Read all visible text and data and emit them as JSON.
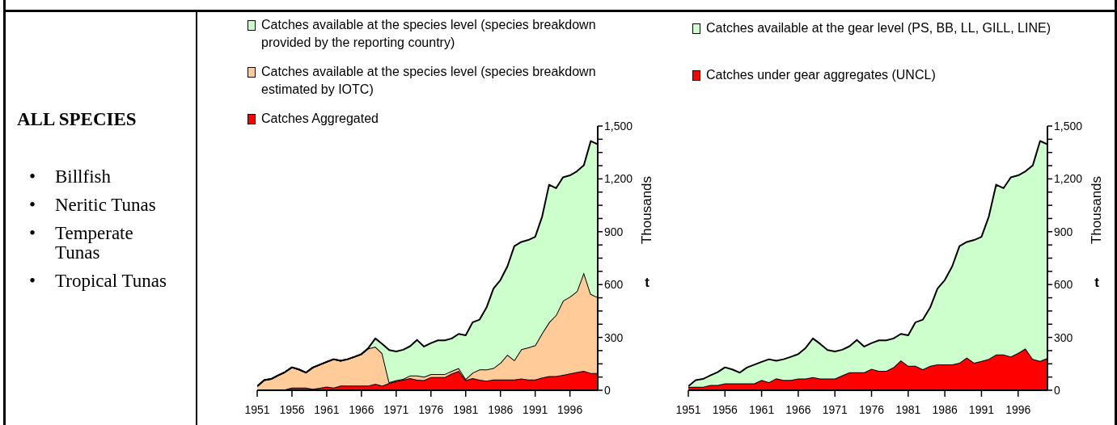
{
  "chart_data": [
    {
      "type": "other",
      "title": "ALL SPECIES",
      "annotations": [
        "• Billfish",
        "• Neritic Tunas",
        "• Temperate Tunas",
        "• Tropical Tunas"
      ]
    },
    {
      "type": "area",
      "stacked": true,
      "legend": "top",
      "ylabel": "Thousands",
      "annotations": [
        "t"
      ],
      "x": [
        1951,
        1952,
        1953,
        1954,
        1955,
        1956,
        1957,
        1958,
        1959,
        1960,
        1961,
        1962,
        1963,
        1964,
        1965,
        1966,
        1967,
        1968,
        1969,
        1970,
        1971,
        1972,
        1973,
        1974,
        1975,
        1976,
        1977,
        1978,
        1979,
        1980,
        1981,
        1982,
        1983,
        1984,
        1985,
        1986,
        1987,
        1988,
        1989,
        1990,
        1991,
        1992,
        1993,
        1994,
        1995,
        1996,
        1997,
        1998,
        1999,
        2000
      ],
      "xlim": [
        1951,
        2000
      ],
      "xticks": [
        1951,
        1956,
        1961,
        1966,
        1971,
        1976,
        1981,
        1986,
        1991,
        1996
      ],
      "ylim": [
        0,
        1500
      ],
      "yticks": [
        0,
        {
          "value": 75,
          "label": null
        },
        {
          "value": 150,
          "label": null
        },
        {
          "value": 225,
          "label": null
        },
        300,
        {
          "value": 375,
          "label": null
        },
        {
          "value": 450,
          "label": null
        },
        {
          "value": 525,
          "label": null
        },
        600,
        {
          "value": 675,
          "label": null
        },
        {
          "value": 750,
          "label": null
        },
        {
          "value": 825,
          "label": null
        },
        900,
        {
          "value": 975,
          "label": null
        },
        {
          "value": 1050,
          "label": null
        },
        {
          "value": 1125,
          "label": null
        },
        {
          "value": 1200,
          "label": "1,200"
        },
        {
          "value": 1275,
          "label": null
        },
        {
          "value": 1350,
          "label": null
        },
        {
          "value": 1425,
          "label": null
        },
        {
          "value": 1500,
          "label": "1,500"
        }
      ],
      "series": [
        {
          "name": "Catches Aggregated",
          "color": "#ff0000",
          "values": [
            5,
            5,
            5,
            5,
            5,
            15,
            15,
            15,
            8,
            14,
            21,
            15,
            26,
            26,
            26,
            26,
            26,
            37,
            26,
            41,
            52,
            60,
            69,
            60,
            57,
            75,
            75,
            75,
            95,
            110,
            57,
            69,
            60,
            54,
            61,
            61,
            61,
            61,
            67,
            61,
            61,
            72,
            80,
            80,
            87,
            95,
            103,
            110,
            98,
            98
          ]
        },
        {
          "name": "Catches available at the species level (species breakdown estimated by IOTC)",
          "color": "#ffcc99",
          "values": [
            18,
            52,
            59,
            79,
            98,
            115,
            103,
            85,
            121,
            131,
            140,
            161,
            141,
            150,
            164,
            179,
            211,
            211,
            184,
            5,
            5,
            4,
            15,
            24,
            20,
            17,
            17,
            17,
            15,
            16,
            7,
            31,
            58,
            64,
            65,
            95,
            141,
            110,
            166,
            182,
            195,
            253,
            306,
            347,
            421,
            436,
            459,
            559,
            449,
            430
          ]
        },
        {
          "name": "Catches available at the species level (species breakdown provided by the reporting country)",
          "color": "#ccffcc",
          "values": [
            0,
            0,
            0,
            0,
            0,
            0,
            0,
            0,
            0,
            0,
            0,
            0,
            0,
            0,
            0,
            0,
            3,
            46,
            53,
            182,
            163,
            166,
            166,
            202,
            171,
            176,
            191,
            191,
            184,
            194,
            248,
            286,
            283,
            352,
            451,
            470,
            501,
            647,
            609,
            610,
            615,
            661,
            781,
            720,
            701,
            689,
            681,
            608,
            868,
            868
          ]
        }
      ]
    },
    {
      "type": "area",
      "stacked": true,
      "legend": "top",
      "ylabel": "Thousands",
      "annotations": [
        "t"
      ],
      "x": [
        1951,
        1952,
        1953,
        1954,
        1955,
        1956,
        1957,
        1958,
        1959,
        1960,
        1961,
        1962,
        1963,
        1964,
        1965,
        1966,
        1967,
        1968,
        1969,
        1970,
        1971,
        1972,
        1973,
        1974,
        1975,
        1976,
        1977,
        1978,
        1979,
        1980,
        1981,
        1982,
        1983,
        1984,
        1985,
        1986,
        1987,
        1988,
        1989,
        1990,
        1991,
        1992,
        1993,
        1994,
        1995,
        1996,
        1997,
        1998,
        1999,
        2000
      ],
      "xlim": [
        1951,
        2000
      ],
      "xticks": [
        1951,
        1956,
        1961,
        1966,
        1971,
        1976,
        1981,
        1986,
        1991,
        1996
      ],
      "ylim": [
        0,
        1500
      ],
      "yticks": [
        0,
        {
          "value": 75,
          "label": null
        },
        {
          "value": 150,
          "label": null
        },
        {
          "value": 225,
          "label": null
        },
        300,
        {
          "value": 375,
          "label": null
        },
        {
          "value": 450,
          "label": null
        },
        {
          "value": 525,
          "label": null
        },
        600,
        {
          "value": 675,
          "label": null
        },
        {
          "value": 750,
          "label": null
        },
        {
          "value": 825,
          "label": null
        },
        900,
        {
          "value": 975,
          "label": null
        },
        {
          "value": 1050,
          "label": null
        },
        {
          "value": 1125,
          "label": null
        },
        {
          "value": 1200,
          "label": "1,200"
        },
        {
          "value": 1275,
          "label": null
        },
        {
          "value": 1350,
          "label": null
        },
        {
          "value": 1425,
          "label": null
        },
        {
          "value": 1500,
          "label": "1,500"
        }
      ],
      "series": [
        {
          "name": "Catches under gear aggregates (UNCL)",
          "color": "#ff0000",
          "values": [
            20,
            20,
            20,
            30,
            30,
            39,
            39,
            39,
            39,
            39,
            58,
            46,
            68,
            58,
            58,
            66,
            66,
            75,
            66,
            66,
            66,
            85,
            102,
            102,
            102,
            122,
            110,
            110,
            131,
            170,
            139,
            139,
            119,
            139,
            147,
            147,
            147,
            156,
            186,
            156,
            166,
            178,
            203,
            203,
            192,
            212,
            237,
            178,
            166,
            183
          ]
        },
        {
          "name": "Catches available at the gear level (PS, BB, LL, GILL, LINE)",
          "color": "#ccffcc",
          "values": [
            3,
            37,
            44,
            54,
            73,
            91,
            79,
            61,
            90,
            106,
            103,
            130,
            99,
            118,
            132,
            139,
            174,
            219,
            197,
            162,
            154,
            145,
            148,
            184,
            146,
            146,
            173,
            173,
            163,
            150,
            173,
            247,
            282,
            331,
            430,
            479,
            556,
            662,
            656,
            697,
            705,
            808,
            964,
            944,
            1017,
            1008,
            1006,
            1099,
            1249,
            1213
          ]
        }
      ]
    }
  ]
}
